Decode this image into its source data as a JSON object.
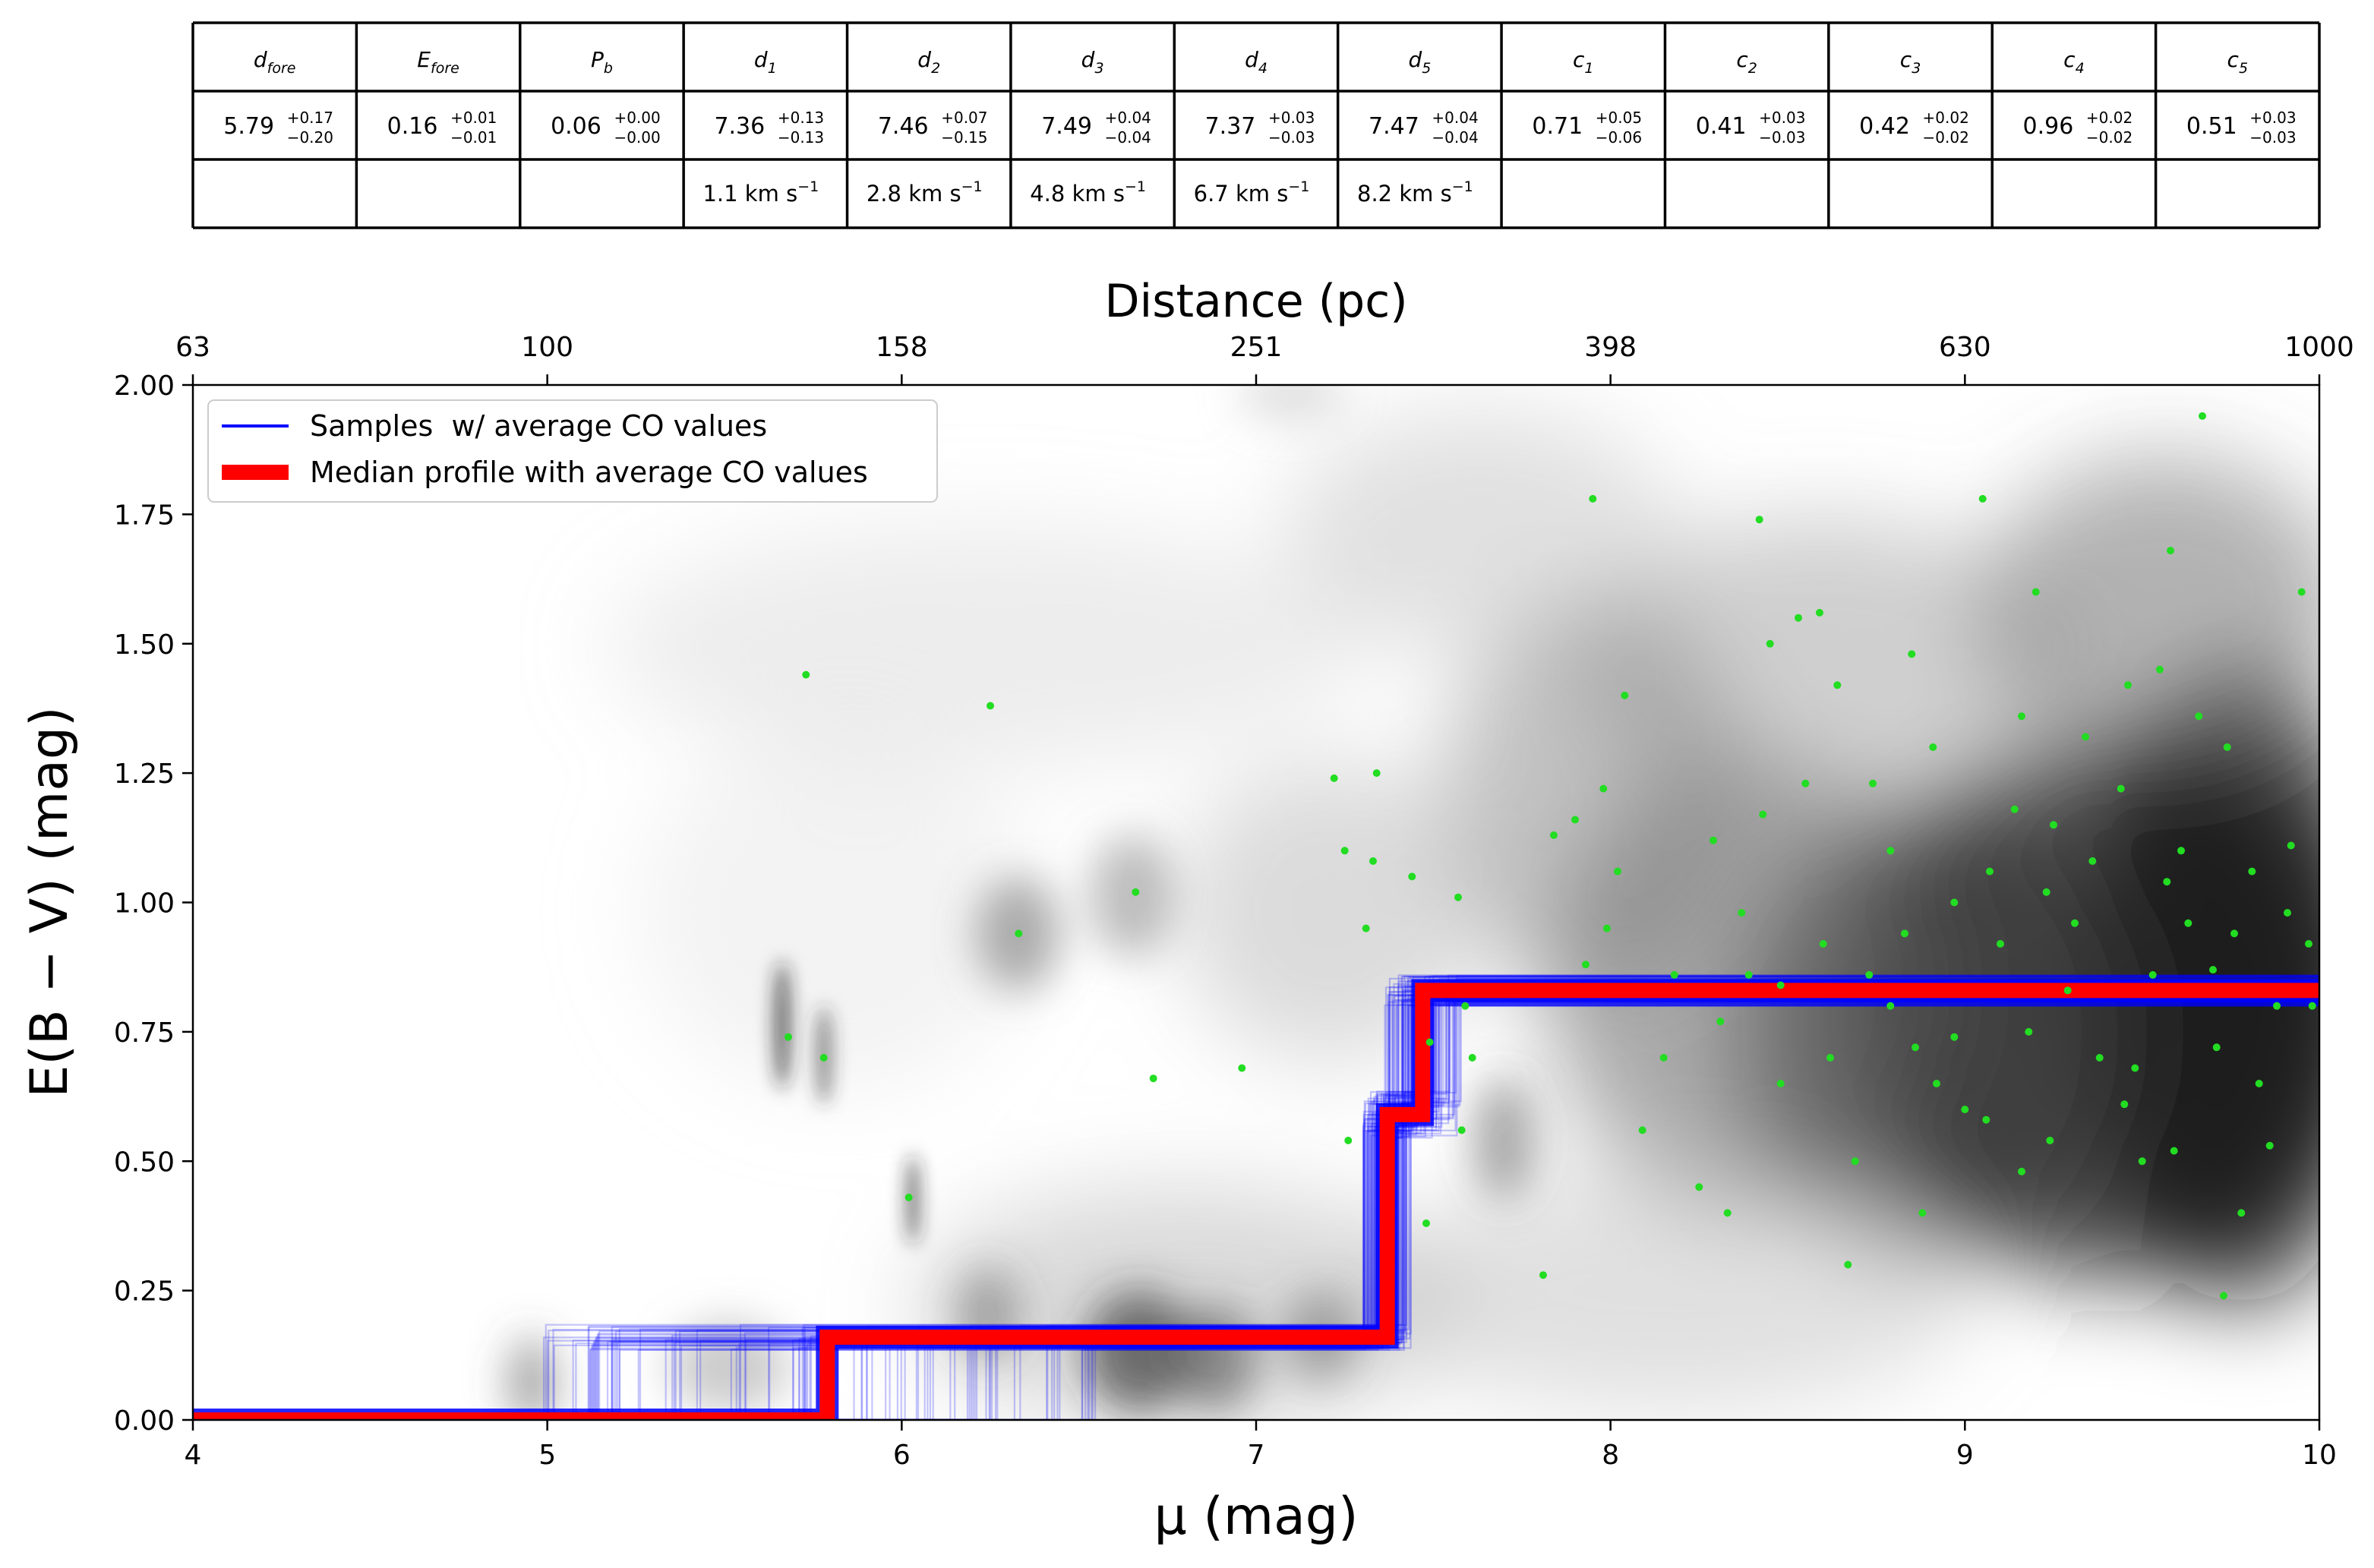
{
  "param_table": {
    "headers": [
      {
        "sym": "d",
        "sub": "fore"
      },
      {
        "sym": "E",
        "sub": "fore"
      },
      {
        "sym": "P",
        "sub": "b"
      },
      {
        "sym": "d",
        "sub": "1"
      },
      {
        "sym": "d",
        "sub": "2"
      },
      {
        "sym": "d",
        "sub": "3"
      },
      {
        "sym": "d",
        "sub": "4"
      },
      {
        "sym": "d",
        "sub": "5"
      },
      {
        "sym": "c",
        "sub": "1"
      },
      {
        "sym": "c",
        "sub": "2"
      },
      {
        "sym": "c",
        "sub": "3"
      },
      {
        "sym": "c",
        "sub": "4"
      },
      {
        "sym": "c",
        "sub": "5"
      }
    ],
    "values": [
      {
        "v": "5.79",
        "up": "+0.17",
        "lo": "−0.20"
      },
      {
        "v": "0.16",
        "up": "+0.01",
        "lo": "−0.01"
      },
      {
        "v": "0.06",
        "up": "+0.00",
        "lo": "−0.00"
      },
      {
        "v": "7.36",
        "up": "+0.13",
        "lo": "−0.13"
      },
      {
        "v": "7.46",
        "up": "+0.07",
        "lo": "−0.15"
      },
      {
        "v": "7.49",
        "up": "+0.04",
        "lo": "−0.04"
      },
      {
        "v": "7.37",
        "up": "+0.03",
        "lo": "−0.03"
      },
      {
        "v": "7.47",
        "up": "+0.04",
        "lo": "−0.04"
      },
      {
        "v": "0.71",
        "up": "+0.05",
        "lo": "−0.06"
      },
      {
        "v": "0.41",
        "up": "+0.03",
        "lo": "−0.03"
      },
      {
        "v": "0.42",
        "up": "+0.02",
        "lo": "−0.02"
      },
      {
        "v": "0.96",
        "up": "+0.02",
        "lo": "−0.02"
      },
      {
        "v": "0.51",
        "up": "+0.03",
        "lo": "−0.03"
      }
    ],
    "velocities": [
      "",
      "",
      "",
      "1.1 km s",
      "2.8 km s",
      "4.8 km s",
      "6.7 km s",
      "8.2 km s",
      "",
      "",
      "",
      "",
      ""
    ],
    "velocity_exponent": "−1"
  },
  "chart_data": {
    "type": "line",
    "xlabel": "μ (mag)",
    "ylabel": "E(B − V) (mag)",
    "top_xlabel": "Distance (pc)",
    "xlim": [
      4,
      10
    ],
    "ylim": [
      0,
      2
    ],
    "xticks": [
      4,
      5,
      6,
      7,
      8,
      9,
      10
    ],
    "xtick_labels": [
      "4",
      "5",
      "6",
      "7",
      "8",
      "9",
      "10"
    ],
    "yticks": [
      0,
      0.25,
      0.5,
      0.75,
      1.0,
      1.25,
      1.5,
      1.75,
      2.0
    ],
    "ytick_labels": [
      "0.00",
      "0.25",
      "0.50",
      "0.75",
      "1.00",
      "1.25",
      "1.50",
      "1.75",
      "2.00"
    ],
    "top_xticks": [
      4,
      5,
      6,
      7,
      8,
      9,
      10
    ],
    "top_xtick_labels": [
      "63",
      "100",
      "158",
      "251",
      "398",
      "630",
      "1000"
    ],
    "legend_position": "top-left",
    "series": [
      {
        "name": "Samples  w/ average CO values",
        "color": "#0000ff",
        "style": "thin translucent step lines",
        "x": [
          4.0,
          5.79,
          5.79,
          7.37,
          7.37,
          7.47,
          7.47,
          10.0
        ],
        "y": [
          0.0,
          0.0,
          0.16,
          0.16,
          0.59,
          0.59,
          0.83,
          0.83
        ]
      },
      {
        "name": "Median profile with average CO values",
        "color": "#ff0000",
        "style": "thick step line",
        "x": [
          4.0,
          5.79,
          5.79,
          7.37,
          7.37,
          7.47,
          7.47,
          10.0
        ],
        "y": [
          0.0,
          0.0,
          0.16,
          0.16,
          0.59,
          0.59,
          0.83,
          0.83
        ]
      }
    ],
    "stars": {
      "color": "#22dd22",
      "points": [
        [
          5.73,
          1.44
        ],
        [
          6.25,
          1.38
        ],
        [
          5.68,
          0.74
        ],
        [
          5.78,
          0.7
        ],
        [
          6.02,
          0.43
        ],
        [
          6.33,
          0.94
        ],
        [
          6.66,
          1.02
        ],
        [
          6.71,
          0.66
        ],
        [
          6.96,
          0.68
        ],
        [
          7.22,
          1.24
        ],
        [
          7.34,
          1.25
        ],
        [
          7.33,
          1.08
        ],
        [
          7.25,
          1.1
        ],
        [
          7.31,
          0.95
        ],
        [
          7.44,
          1.05
        ],
        [
          7.57,
          1.01
        ],
        [
          7.49,
          0.73
        ],
        [
          7.58,
          0.56
        ],
        [
          7.26,
          0.54
        ],
        [
          7.48,
          0.38
        ],
        [
          7.59,
          0.8
        ],
        [
          7.61,
          0.7
        ],
        [
          7.81,
          0.28
        ],
        [
          7.84,
          1.13
        ],
        [
          7.9,
          1.16
        ],
        [
          7.95,
          1.78
        ],
        [
          8.04,
          1.4
        ],
        [
          7.99,
          0.95
        ],
        [
          7.98,
          1.22
        ],
        [
          8.15,
          0.7
        ],
        [
          8.25,
          0.45
        ],
        [
          8.33,
          0.4
        ],
        [
          8.37,
          0.98
        ],
        [
          8.42,
          1.74
        ],
        [
          8.45,
          1.5
        ],
        [
          8.48,
          0.65
        ],
        [
          8.55,
          1.23
        ],
        [
          8.59,
          1.56
        ],
        [
          8.6,
          0.92
        ],
        [
          8.64,
          1.42
        ],
        [
          8.67,
          0.3
        ],
        [
          8.69,
          0.5
        ],
        [
          8.74,
          1.23
        ],
        [
          8.79,
          0.8
        ],
        [
          8.85,
          1.48
        ],
        [
          8.88,
          0.4
        ],
        [
          8.92,
          0.65
        ],
        [
          8.97,
          1.0
        ],
        [
          9.05,
          1.78
        ],
        [
          9.06,
          0.58
        ],
        [
          9.1,
          0.92
        ],
        [
          9.16,
          0.48
        ],
        [
          9.18,
          0.75
        ],
        [
          9.2,
          1.6
        ],
        [
          9.25,
          1.15
        ],
        [
          9.31,
          0.96
        ],
        [
          9.38,
          0.7
        ],
        [
          9.45,
          0.61
        ],
        [
          9.5,
          0.5
        ],
        [
          9.55,
          1.45
        ],
        [
          9.58,
          1.68
        ],
        [
          9.61,
          1.1
        ],
        [
          9.63,
          0.96
        ],
        [
          9.67,
          1.94
        ],
        [
          9.7,
          0.87
        ],
        [
          9.73,
          0.24
        ],
        [
          9.78,
          0.4
        ],
        [
          9.83,
          0.65
        ],
        [
          9.88,
          0.8
        ],
        [
          9.95,
          1.6
        ],
        [
          9.98,
          0.8
        ],
        [
          8.29,
          1.12
        ],
        [
          9.44,
          1.22
        ],
        [
          8.02,
          1.06
        ],
        [
          8.86,
          0.72
        ],
        [
          9.29,
          0.83
        ],
        [
          9.66,
          1.36
        ],
        [
          8.53,
          1.55
        ],
        [
          9.46,
          1.42
        ],
        [
          9.36,
          1.08
        ],
        [
          9.92,
          1.11
        ],
        [
          8.18,
          0.86
        ],
        [
          8.79,
          1.1
        ],
        [
          9.74,
          1.3
        ],
        [
          8.97,
          0.74
        ],
        [
          9.16,
          1.36
        ],
        [
          8.09,
          0.56
        ],
        [
          9.53,
          0.86
        ],
        [
          8.43,
          1.17
        ],
        [
          9.24,
          0.54
        ],
        [
          9.81,
          1.06
        ],
        [
          8.73,
          0.86
        ],
        [
          9.48,
          0.68
        ],
        [
          7.93,
          0.88
        ],
        [
          8.91,
          1.3
        ],
        [
          9.59,
          0.52
        ],
        [
          8.31,
          0.77
        ],
        [
          9.86,
          0.53
        ],
        [
          8.62,
          0.7
        ],
        [
          9.0,
          0.6
        ],
        [
          9.14,
          1.18
        ],
        [
          9.34,
          1.32
        ],
        [
          9.71,
          0.72
        ],
        [
          8.48,
          0.84
        ],
        [
          8.39,
          0.86
        ],
        [
          8.83,
          0.94
        ],
        [
          9.07,
          1.06
        ],
        [
          9.23,
          1.02
        ],
        [
          9.57,
          1.04
        ],
        [
          9.76,
          0.94
        ],
        [
          9.91,
          0.98
        ],
        [
          9.97,
          0.92
        ]
      ]
    }
  }
}
